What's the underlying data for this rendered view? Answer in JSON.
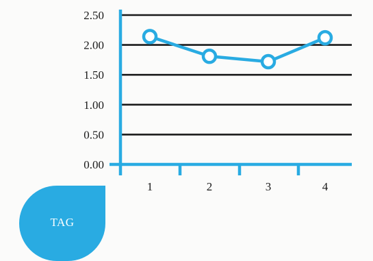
{
  "chart_data": {
    "type": "line",
    "title": "",
    "xlabel": "",
    "ylabel": "",
    "categories": [
      "1",
      "2",
      "3",
      "4"
    ],
    "series": [
      {
        "values": [
          2.14,
          1.81,
          1.72,
          2.12
        ]
      }
    ],
    "ylim": [
      0,
      2.5
    ],
    "yticks": [
      "0.00",
      "0.50",
      "1.00",
      "1.50",
      "2.00",
      "2.50"
    ],
    "grid": true,
    "legend": "none"
  },
  "tag": {
    "label": "TAG"
  },
  "colors": {
    "accent": "#29abe2",
    "grid": "#1a1a1a",
    "text": "#1a1a1a",
    "background": "#fbfbfa"
  }
}
